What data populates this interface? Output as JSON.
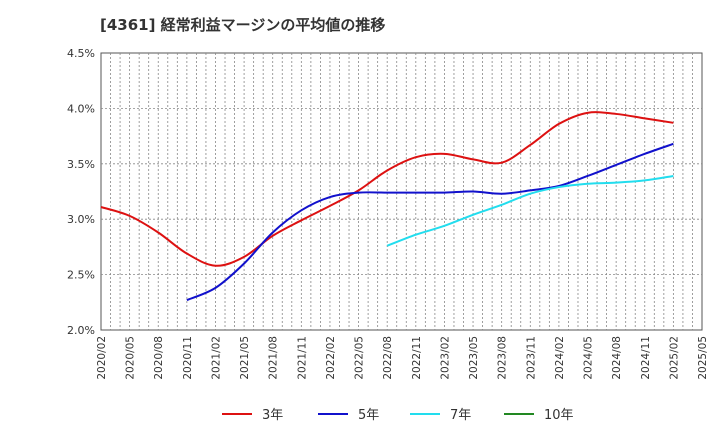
{
  "chart_data": {
    "type": "line",
    "title": "[4361]  経常利益マージンの平均値の推移",
    "xlabel": "",
    "ylabel": "",
    "ylim": [
      2.0,
      4.5
    ],
    "y_ticks": [
      "2.0%",
      "2.5%",
      "3.0%",
      "3.5%",
      "4.0%",
      "4.5%"
    ],
    "y_tick_values": [
      2.0,
      2.5,
      3.0,
      3.5,
      4.0,
      4.5
    ],
    "x_ticks": [
      "2020/02",
      "2020/05",
      "2020/08",
      "2020/11",
      "2021/02",
      "2021/05",
      "2021/08",
      "2021/11",
      "2022/02",
      "2022/05",
      "2022/08",
      "2022/11",
      "2023/02",
      "2023/05",
      "2023/08",
      "2023/11",
      "2024/02",
      "2024/05",
      "2024/08",
      "2024/11",
      "2025/02",
      "2025/05"
    ],
    "grid": true,
    "legend_position": "bottom",
    "series": [
      {
        "name": "3年",
        "color": "#dd1111",
        "x": [
          "2020/02",
          "2020/05",
          "2020/08",
          "2020/11",
          "2021/02",
          "2021/05",
          "2021/08",
          "2021/11",
          "2022/02",
          "2022/05",
          "2022/08",
          "2022/11",
          "2023/02",
          "2023/05",
          "2023/08",
          "2023/11",
          "2024/02",
          "2024/05",
          "2024/08",
          "2024/11",
          "2025/02"
        ],
        "values": [
          3.11,
          3.03,
          2.88,
          2.69,
          2.58,
          2.66,
          2.85,
          2.99,
          3.12,
          3.26,
          3.44,
          3.56,
          3.59,
          3.54,
          3.51,
          3.67,
          3.86,
          3.96,
          3.95,
          3.91,
          3.87
        ]
      },
      {
        "name": "5年",
        "color": "#1111cc",
        "x": [
          "2020/11",
          "2021/02",
          "2021/05",
          "2021/08",
          "2021/11",
          "2022/02",
          "2022/05",
          "2022/08",
          "2022/11",
          "2023/02",
          "2023/05",
          "2023/08",
          "2023/11",
          "2024/02",
          "2024/05",
          "2024/08",
          "2024/11",
          "2025/02"
        ],
        "values": [
          2.27,
          2.38,
          2.6,
          2.88,
          3.08,
          3.2,
          3.24,
          3.24,
          3.24,
          3.24,
          3.25,
          3.23,
          3.26,
          3.3,
          3.39,
          3.49,
          3.59,
          3.68
        ]
      },
      {
        "name": "7年",
        "color": "#22ddee",
        "x": [
          "2022/08",
          "2022/11",
          "2023/02",
          "2023/05",
          "2023/08",
          "2023/11",
          "2024/02",
          "2024/05",
          "2024/08",
          "2024/11",
          "2025/02"
        ],
        "values": [
          2.76,
          2.86,
          2.94,
          3.04,
          3.13,
          3.23,
          3.29,
          3.32,
          3.33,
          3.35,
          3.39
        ]
      },
      {
        "name": "10年",
        "color": "#228822",
        "x": [],
        "values": []
      }
    ]
  }
}
